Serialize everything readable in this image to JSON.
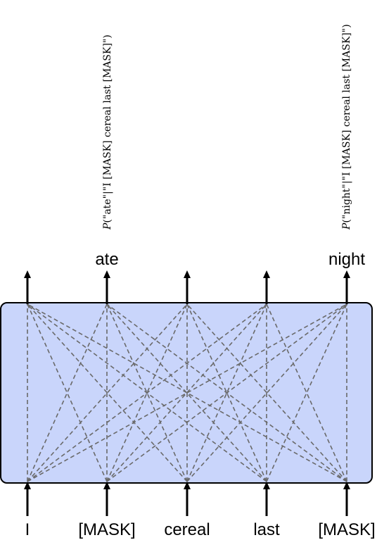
{
  "diagram": {
    "input_tokens": [
      "I",
      "[MASK]",
      "cereal",
      "last",
      "[MASK]"
    ],
    "output_tokens": [
      {
        "position": 1,
        "label": "ate"
      },
      {
        "position": 4,
        "label": "night"
      }
    ],
    "probability_labels": [
      {
        "position": 1,
        "prefix": "P",
        "text": "(\"ate\"|\"I [MASK] cereal last [MASK]\")"
      },
      {
        "position": 4,
        "prefix": "P",
        "text": "(\"night\"|\"I [MASK] cereal last [MASK]\")"
      }
    ],
    "colors": {
      "box_fill": "#c9d5fb",
      "box_stroke": "#000000",
      "attention_line": "#6a6a6a",
      "arrow": "#000000"
    },
    "connections": "all-to-all"
  }
}
